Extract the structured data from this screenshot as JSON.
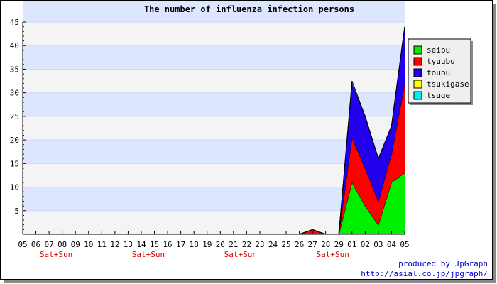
{
  "chart_data": {
    "type": "area",
    "stacked": true,
    "title": "The number of influenza infection persons",
    "xlabel": "",
    "ylabel": "",
    "ylim": [
      0,
      45
    ],
    "yticks": [
      5,
      10,
      15,
      20,
      25,
      30,
      35,
      40,
      45
    ],
    "categories": [
      "05",
      "06",
      "07",
      "08",
      "09",
      "10",
      "11",
      "12",
      "13",
      "14",
      "15",
      "16",
      "17",
      "18",
      "19",
      "20",
      "21",
      "22",
      "23",
      "24",
      "25",
      "26",
      "27",
      "28",
      "29",
      "01",
      "02",
      "03",
      "04",
      "05"
    ],
    "weekend_labels": [
      {
        "x": "07",
        "text": "Sat+Sun"
      },
      {
        "x": "14",
        "text": "Sat+Sun"
      },
      {
        "x": "21",
        "text": "Sat+Sun"
      },
      {
        "x": "28",
        "text": "Sat+Sun"
      }
    ],
    "band_fill": "#dde6ff",
    "background_fill": "#f4f4f4",
    "legend_position": "right",
    "series": [
      {
        "name": "seibu",
        "color": "#00ee00",
        "values": [
          0,
          0,
          0,
          0,
          0,
          0,
          0,
          0,
          0,
          0,
          0,
          0,
          0,
          0,
          0,
          0,
          0,
          0,
          0,
          0,
          0,
          0,
          0,
          0,
          0,
          11,
          6,
          2,
          11,
          13
        ]
      },
      {
        "name": "tyuubu",
        "color": "#ff0000",
        "values": [
          0,
          0,
          0,
          0,
          0,
          0,
          0,
          0,
          0,
          0,
          0,
          0,
          0,
          0,
          0,
          0,
          0,
          0,
          0,
          0,
          0,
          0,
          1,
          0,
          0,
          9.5,
          8,
          5,
          6,
          19
        ]
      },
      {
        "name": "toubu",
        "color": "#2200ee",
        "values": [
          0,
          0,
          0,
          0,
          0,
          0,
          0,
          0,
          0,
          0,
          0,
          0,
          0,
          0,
          0,
          0,
          0,
          0,
          0,
          0,
          0,
          0,
          0,
          0,
          0,
          11.5,
          11,
          9,
          6,
          12
        ]
      },
      {
        "name": "tsukigase",
        "color": "#ffff00",
        "values": [
          0,
          0,
          0,
          0,
          0,
          0,
          0,
          0,
          0,
          0,
          0,
          0,
          0,
          0,
          0,
          0,
          0,
          0,
          0,
          0,
          0,
          0,
          0,
          0,
          0,
          0,
          0,
          0,
          0,
          0
        ]
      },
      {
        "name": "tsuge",
        "color": "#00eeee",
        "values": [
          0,
          0,
          0,
          0,
          0,
          0,
          0,
          0,
          0,
          0,
          0,
          0,
          0,
          0,
          0,
          0,
          0,
          0,
          0,
          0,
          0,
          0,
          0,
          0,
          0,
          0.5,
          0,
          0,
          0,
          0
        ]
      }
    ]
  },
  "credits": {
    "line1": "produced by JpGraph",
    "line2": "http://asial.co.jp/jpgraph/"
  }
}
